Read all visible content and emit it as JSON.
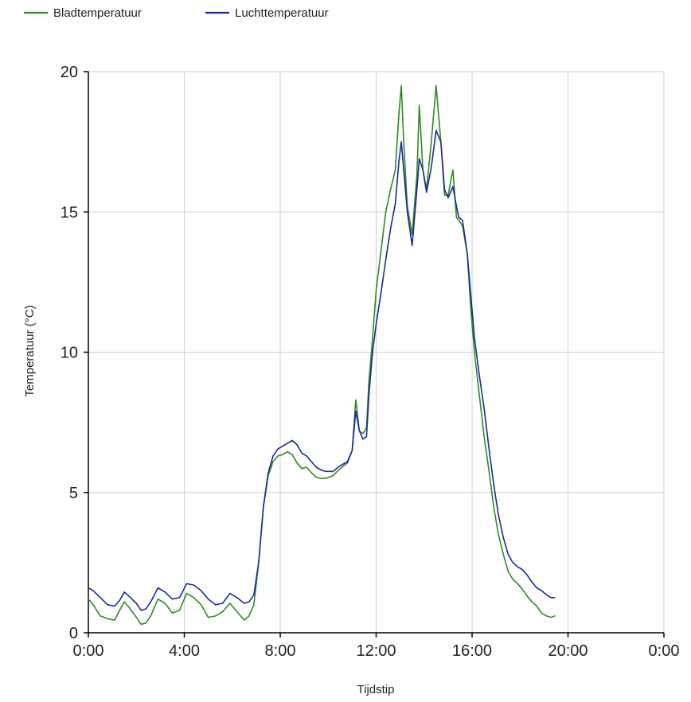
{
  "chart_data": {
    "type": "line",
    "xlabel": "Tijdstip",
    "ylabel": "Temperatuur (°C)",
    "xlim": [
      0,
      24
    ],
    "ylim": [
      0,
      20
    ],
    "x_ticks": [
      0,
      4,
      8,
      12,
      16,
      20,
      24
    ],
    "x_tick_labels": [
      "0:00",
      "4:00",
      "8:00",
      "12:00",
      "16:00",
      "20:00",
      "0:00"
    ],
    "y_ticks": [
      0,
      5,
      10,
      15,
      20
    ],
    "y_tick_labels": [
      "0",
      "5",
      "10",
      "15",
      "20"
    ],
    "grid": true,
    "legend_position": "top-left",
    "series": [
      {
        "name": "Bladtemperatuur",
        "color": "#2e8b22",
        "x": [
          0.0,
          0.2,
          0.5,
          0.8,
          1.1,
          1.3,
          1.5,
          1.7,
          2.0,
          2.2,
          2.4,
          2.6,
          2.9,
          3.2,
          3.5,
          3.8,
          4.1,
          4.4,
          4.7,
          5.0,
          5.3,
          5.6,
          5.9,
          6.2,
          6.5,
          6.7,
          6.9,
          7.1,
          7.3,
          7.5,
          7.7,
          7.9,
          8.1,
          8.3,
          8.5,
          8.7,
          8.9,
          9.1,
          9.3,
          9.5,
          9.7,
          9.9,
          10.2,
          10.5,
          10.8,
          11.0,
          11.15,
          11.3,
          11.45,
          11.6,
          11.7,
          11.85,
          12.0,
          12.2,
          12.4,
          12.6,
          12.8,
          12.95,
          13.05,
          13.15,
          13.3,
          13.5,
          13.7,
          13.8,
          13.95,
          14.1,
          14.3,
          14.5,
          14.7,
          14.85,
          15.0,
          15.2,
          15.35,
          15.45,
          15.6,
          15.8,
          15.95,
          16.1,
          16.3,
          16.5,
          16.7,
          16.9,
          17.1,
          17.3,
          17.5,
          17.7,
          17.9,
          18.1,
          18.3,
          18.5,
          18.7,
          18.9,
          19.1,
          19.3,
          19.45
        ],
        "values": [
          1.2,
          1.0,
          0.6,
          0.5,
          0.45,
          0.8,
          1.1,
          0.9,
          0.55,
          0.3,
          0.35,
          0.6,
          1.2,
          1.05,
          0.7,
          0.8,
          1.4,
          1.25,
          1.0,
          0.55,
          0.6,
          0.75,
          1.05,
          0.75,
          0.45,
          0.6,
          1.0,
          2.5,
          4.5,
          5.6,
          6.1,
          6.3,
          6.35,
          6.45,
          6.35,
          6.05,
          5.85,
          5.9,
          5.7,
          5.55,
          5.5,
          5.5,
          5.6,
          5.85,
          6.05,
          6.5,
          8.3,
          7.2,
          7.1,
          7.3,
          9.0,
          10.5,
          12.2,
          13.6,
          15.0,
          15.8,
          16.5,
          18.5,
          19.5,
          17.5,
          15.2,
          14.2,
          16.3,
          18.8,
          16.5,
          15.8,
          17.5,
          19.5,
          17.5,
          15.6,
          15.6,
          16.5,
          14.8,
          14.7,
          14.5,
          13.5,
          11.5,
          10.0,
          8.5,
          7.0,
          5.8,
          4.5,
          3.5,
          2.8,
          2.2,
          1.9,
          1.75,
          1.55,
          1.3,
          1.1,
          0.95,
          0.7,
          0.6,
          0.55,
          0.6
        ]
      },
      {
        "name": "Luchttemperatuur",
        "color": "#1a2a9c",
        "x": [
          0.0,
          0.2,
          0.5,
          0.8,
          1.1,
          1.3,
          1.5,
          1.7,
          2.0,
          2.2,
          2.4,
          2.6,
          2.9,
          3.2,
          3.5,
          3.8,
          4.1,
          4.4,
          4.7,
          5.0,
          5.3,
          5.6,
          5.9,
          6.2,
          6.5,
          6.7,
          6.9,
          7.1,
          7.3,
          7.5,
          7.7,
          7.9,
          8.1,
          8.3,
          8.5,
          8.7,
          8.9,
          9.1,
          9.3,
          9.5,
          9.7,
          9.9,
          10.2,
          10.5,
          10.8,
          11.0,
          11.15,
          11.3,
          11.45,
          11.6,
          11.7,
          11.85,
          12.0,
          12.2,
          12.4,
          12.6,
          12.8,
          12.95,
          13.05,
          13.15,
          13.3,
          13.5,
          13.7,
          13.8,
          13.95,
          14.1,
          14.3,
          14.5,
          14.7,
          14.85,
          15.0,
          15.2,
          15.35,
          15.45,
          15.6,
          15.8,
          15.95,
          16.1,
          16.3,
          16.5,
          16.7,
          16.9,
          17.1,
          17.3,
          17.5,
          17.7,
          17.9,
          18.1,
          18.3,
          18.5,
          18.7,
          18.9,
          19.1,
          19.3,
          19.45
        ],
        "values": [
          1.6,
          1.5,
          1.25,
          1.0,
          0.95,
          1.15,
          1.45,
          1.3,
          1.05,
          0.8,
          0.85,
          1.1,
          1.6,
          1.45,
          1.2,
          1.25,
          1.75,
          1.7,
          1.5,
          1.2,
          1.0,
          1.05,
          1.4,
          1.25,
          1.05,
          1.1,
          1.35,
          2.5,
          4.5,
          5.7,
          6.3,
          6.55,
          6.65,
          6.75,
          6.85,
          6.7,
          6.4,
          6.3,
          6.1,
          5.9,
          5.8,
          5.75,
          5.75,
          5.95,
          6.1,
          6.5,
          7.9,
          7.2,
          6.9,
          7.0,
          8.5,
          10.0,
          11.0,
          12.1,
          13.3,
          14.4,
          15.3,
          16.8,
          17.5,
          16.5,
          15.0,
          13.8,
          15.8,
          16.9,
          16.5,
          15.7,
          16.6,
          17.9,
          17.5,
          15.8,
          15.5,
          15.9,
          15.2,
          14.8,
          14.7,
          13.5,
          12.0,
          10.5,
          9.2,
          8.0,
          6.6,
          5.3,
          4.2,
          3.4,
          2.8,
          2.5,
          2.35,
          2.25,
          2.05,
          1.8,
          1.6,
          1.5,
          1.35,
          1.25,
          1.25
        ]
      }
    ]
  }
}
